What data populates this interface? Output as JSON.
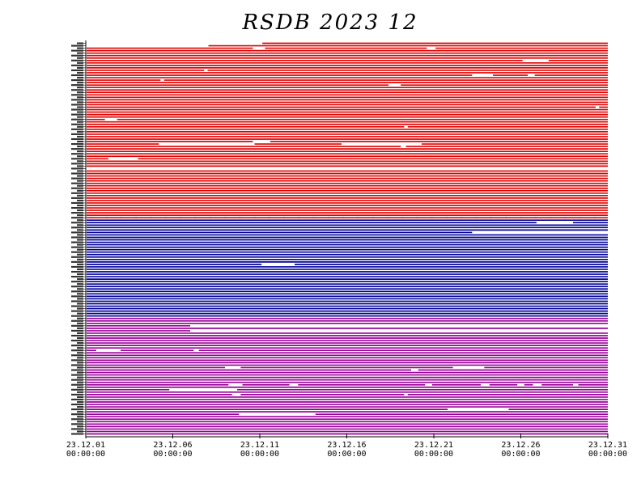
{
  "chart_data": {
    "type": "timeline",
    "title": "RSDB  2023  12",
    "x_range": [
      "2023-12-01 00:00:00",
      "2023-12-31 00:00:00"
    ],
    "x_ticks": [
      {
        "date": "23.12.01",
        "time": "00:00:00",
        "day": 0
      },
      {
        "date": "23.12.06",
        "time": "00:00:00",
        "day": 5
      },
      {
        "date": "23.12.11",
        "time": "00:00:00",
        "day": 10
      },
      {
        "date": "23.12.16",
        "time": "00:00:00",
        "day": 15
      },
      {
        "date": "23.12.21",
        "time": "00:00:00",
        "day": 20
      },
      {
        "date": "23.12.26",
        "time": "00:00:00",
        "day": 25
      },
      {
        "date": "23.12.31",
        "time": "00:00:00",
        "day": 30
      }
    ],
    "groups": [
      {
        "color": "#e00000",
        "rows": 72,
        "gaps": [
          {
            "row": 0,
            "from": 0,
            "to": 10.1
          },
          {
            "row": 1,
            "from": 0,
            "to": 7,
            "to2": 0
          },
          {
            "row": 2,
            "from": 9.6,
            "to": 10.3
          },
          {
            "row": 2,
            "from": 19.6,
            "to": 20.1
          },
          {
            "row": 7,
            "from": 25.1,
            "to": 26.6
          },
          {
            "row": 11,
            "from": 6.8,
            "to": 7.0
          },
          {
            "row": 13,
            "from": 22.2,
            "to": 23.4
          },
          {
            "row": 13,
            "from": 25.4,
            "to": 25.8
          },
          {
            "row": 15,
            "from": 4.3,
            "to": 4.5
          },
          {
            "row": 17,
            "from": 17.4,
            "to": 18.1
          },
          {
            "row": 26,
            "from": 29.3,
            "to": 29.5
          },
          {
            "row": 31,
            "from": 1.1,
            "to": 1.8
          },
          {
            "row": 34,
            "from": 18.3,
            "to": 18.5
          },
          {
            "row": 40,
            "from": 9.6,
            "to": 10.6
          },
          {
            "row": 41,
            "from": 4.2,
            "to": 9.7
          },
          {
            "row": 41,
            "from": 14.7,
            "to": 19.3
          },
          {
            "row": 42,
            "from": 18.1,
            "to": 18.4
          },
          {
            "row": 47,
            "from": 1.3,
            "to": 3.0
          },
          {
            "row": 51,
            "from": 0,
            "to": 30
          }
        ]
      },
      {
        "color": "#000099",
        "rows": 40,
        "gaps": [
          {
            "row": 1,
            "from": 25.9,
            "to": 28.0
          },
          {
            "row": 5,
            "from": 22.2,
            "to": 30
          },
          {
            "row": 18,
            "from": 10.1,
            "to": 12.0
          }
        ]
      },
      {
        "color": "#990099",
        "rows": 48,
        "gaps": [
          {
            "row": 3,
            "from": 6.0,
            "to": 30
          },
          {
            "row": 5,
            "from": 6.0,
            "to": 30
          },
          {
            "row": 13,
            "from": 0.6,
            "to": 2.0
          },
          {
            "row": 13,
            "from": 6.2,
            "to": 6.5
          },
          {
            "row": 20,
            "from": 8.0,
            "to": 8.9
          },
          {
            "row": 21,
            "from": 18.7,
            "to": 19.1
          },
          {
            "row": 20,
            "from": 21.1,
            "to": 22.9
          },
          {
            "row": 27,
            "from": 8.2,
            "to": 9.0
          },
          {
            "row": 27,
            "from": 11.7,
            "to": 12.2
          },
          {
            "row": 27,
            "from": 19.5,
            "to": 19.9
          },
          {
            "row": 27,
            "from": 22.7,
            "to": 23.2
          },
          {
            "row": 27,
            "from": 24.8,
            "to": 25.2
          },
          {
            "row": 27,
            "from": 25.7,
            "to": 26.2
          },
          {
            "row": 27,
            "from": 28.0,
            "to": 28.3
          },
          {
            "row": 29,
            "from": 4.8,
            "to": 8.7
          },
          {
            "row": 31,
            "from": 8.4,
            "to": 8.9
          },
          {
            "row": 31,
            "from": 18.3,
            "to": 18.5
          },
          {
            "row": 37,
            "from": 20.8,
            "to": 24.3
          },
          {
            "row": 39,
            "from": 8.8,
            "to": 13.2
          }
        ]
      }
    ]
  }
}
